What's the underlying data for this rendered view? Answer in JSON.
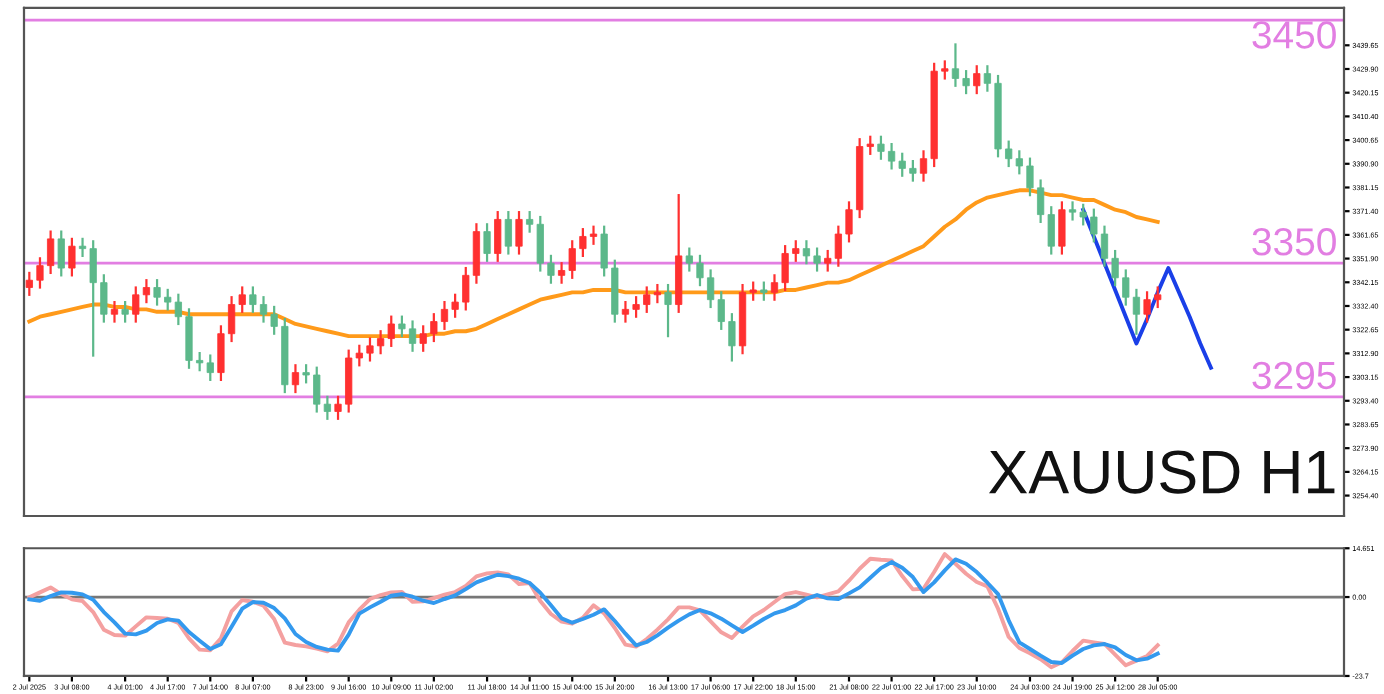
{
  "chart_data": [
    {
      "type": "candlestick",
      "categories": [
        null,
        null,
        null,
        null,
        null,
        null,
        null,
        null,
        null,
        null,
        null,
        null,
        null,
        null,
        null,
        null,
        null,
        null,
        null,
        null,
        null,
        null,
        null,
        null,
        null,
        null,
        null,
        null,
        null,
        null,
        null,
        null,
        null,
        null,
        null,
        null,
        null,
        null,
        null,
        null,
        null,
        null,
        null,
        null,
        null,
        null,
        null,
        null,
        null,
        null,
        null,
        null,
        null,
        null,
        null,
        null,
        null,
        null,
        null,
        null,
        null,
        null,
        null,
        null,
        null,
        null,
        null,
        null,
        null,
        null,
        null,
        null,
        null,
        null,
        null,
        null,
        null,
        null,
        null,
        null,
        null,
        null,
        null,
        null,
        null,
        null,
        null,
        null,
        null,
        null,
        null,
        null,
        null,
        null,
        null,
        null,
        null,
        null,
        null,
        null,
        null,
        null,
        null,
        null,
        null,
        null,
        null,
        null,
        null,
        null,
        null,
        null,
        null,
        null,
        null,
        null,
        null,
        null,
        null,
        null,
        null,
        null,
        null,
        null
      ],
      "ohlc": [
        [
          3340,
          3346,
          3337,
          3343
        ],
        [
          3343,
          3352,
          3340,
          3349
        ],
        [
          3349,
          3363,
          3346,
          3360
        ],
        [
          3360,
          3363,
          3345,
          3348
        ],
        [
          3348,
          3360,
          3345,
          3357
        ],
        [
          3357,
          3360,
          3353,
          3356
        ],
        [
          3356,
          3359,
          3312,
          3342
        ],
        [
          3342,
          3345,
          3326,
          3329
        ],
        [
          3329,
          3334,
          3326,
          3331
        ],
        [
          3331,
          3334,
          3326,
          3329
        ],
        [
          3329,
          3340,
          3326,
          3337
        ],
        [
          3337,
          3343,
          3334,
          3340
        ],
        [
          3340,
          3343,
          3333,
          3336
        ],
        [
          3336,
          3339,
          3331,
          3334
        ],
        [
          3334,
          3337,
          3325,
          3328
        ],
        [
          3328,
          3331,
          3307,
          3310
        ],
        [
          3310,
          3313,
          3306,
          3309
        ],
        [
          3309,
          3312,
          3302,
          3305
        ],
        [
          3305,
          3324,
          3302,
          3321
        ],
        [
          3321,
          3336,
          3318,
          3333
        ],
        [
          3333,
          3340,
          3330,
          3337
        ],
        [
          3337,
          3340,
          3330,
          3333
        ],
        [
          3333,
          3336,
          3326,
          3329
        ],
        [
          3329,
          3332,
          3321,
          3324
        ],
        [
          3324,
          3327,
          3297,
          3300
        ],
        [
          3300,
          3308,
          3297,
          3305
        ],
        [
          3305,
          3308,
          3301,
          3304
        ],
        [
          3304,
          3307,
          3289,
          3292
        ],
        [
          3292,
          3295,
          3286,
          3289
        ],
        [
          3289,
          3295,
          3286,
          3292
        ],
        [
          3292,
          3314,
          3289,
          3311
        ],
        [
          3311,
          3316,
          3308,
          3313
        ],
        [
          3313,
          3319,
          3310,
          3316
        ],
        [
          3316,
          3322,
          3313,
          3319
        ],
        [
          3319,
          3328,
          3316,
          3325
        ],
        [
          3325,
          3328,
          3320,
          3323
        ],
        [
          3323,
          3326,
          3314,
          3317
        ],
        [
          3317,
          3324,
          3314,
          3321
        ],
        [
          3321,
          3329,
          3318,
          3326
        ],
        [
          3326,
          3334,
          3323,
          3331
        ],
        [
          3331,
          3337,
          3328,
          3334
        ],
        [
          3334,
          3348,
          3331,
          3345
        ],
        [
          3345,
          3366,
          3342,
          3363
        ],
        [
          3363,
          3366,
          3351,
          3354
        ],
        [
          3354,
          3371,
          3351,
          3368
        ],
        [
          3368,
          3371,
          3354,
          3357
        ],
        [
          3357,
          3371,
          3354,
          3368
        ],
        [
          3368,
          3371,
          3363,
          3366
        ],
        [
          3366,
          3369,
          3347,
          3350
        ],
        [
          3350,
          3353,
          3342,
          3345
        ],
        [
          3345,
          3350,
          3342,
          3347
        ],
        [
          3347,
          3359,
          3344,
          3356
        ],
        [
          3356,
          3364,
          3353,
          3361
        ],
        [
          3361,
          3365,
          3358,
          3362
        ],
        [
          3362,
          3365,
          3345,
          3348
        ],
        [
          3348,
          3351,
          3326,
          3329
        ],
        [
          3329,
          3334,
          3326,
          3331
        ],
        [
          3331,
          3336,
          3328,
          3333
        ],
        [
          3333,
          3340,
          3330,
          3337
        ],
        [
          3337,
          3341,
          3334,
          3338
        ],
        [
          3338,
          3341,
          3320,
          3333
        ],
        [
          3333,
          3378,
          3330,
          3353
        ],
        [
          3353,
          3356,
          3347,
          3350
        ],
        [
          3350,
          3353,
          3341,
          3344
        ],
        [
          3344,
          3347,
          3332,
          3335
        ],
        [
          3335,
          3338,
          3323,
          3326
        ],
        [
          3326,
          3329,
          3310,
          3316
        ],
        [
          3316,
          3341,
          3313,
          3338
        ],
        [
          3338,
          3342,
          3335,
          3339
        ],
        [
          3339,
          3342,
          3335,
          3338
        ],
        [
          3338,
          3345,
          3335,
          3342
        ],
        [
          3342,
          3357,
          3339,
          3354
        ],
        [
          3354,
          3359,
          3351,
          3356
        ],
        [
          3356,
          3359,
          3350,
          3353
        ],
        [
          3353,
          3356,
          3347,
          3350
        ],
        [
          3350,
          3355,
          3347,
          3352
        ],
        [
          3352,
          3365,
          3349,
          3362
        ],
        [
          3362,
          3375,
          3359,
          3372
        ],
        [
          3372,
          3401,
          3369,
          3398
        ],
        [
          3398,
          3402,
          3395,
          3399
        ],
        [
          3399,
          3402,
          3393,
          3396
        ],
        [
          3396,
          3399,
          3389,
          3392
        ],
        [
          3392,
          3395,
          3386,
          3389
        ],
        [
          3389,
          3392,
          3384,
          3387
        ],
        [
          3387,
          3396,
          3384,
          3393
        ],
        [
          3393,
          3432,
          3390,
          3429
        ],
        [
          3429,
          3433,
          3426,
          3430
        ],
        [
          3430,
          3440,
          3423,
          3426
        ],
        [
          3426,
          3429,
          3420,
          3423
        ],
        [
          3423,
          3431,
          3420,
          3428
        ],
        [
          3428,
          3431,
          3421,
          3424
        ],
        [
          3424,
          3427,
          3394,
          3397
        ],
        [
          3397,
          3400,
          3390,
          3393
        ],
        [
          3393,
          3396,
          3387,
          3390
        ],
        [
          3390,
          3393,
          3378,
          3381
        ],
        [
          3381,
          3384,
          3367,
          3370
        ],
        [
          3370,
          3373,
          3354,
          3357
        ],
        [
          3357,
          3375,
          3354,
          3372
        ],
        [
          3372,
          3375,
          3368,
          3371
        ],
        [
          3371,
          3374,
          3366,
          3369
        ],
        [
          3369,
          3372,
          3359,
          3362
        ],
        [
          3362,
          3365,
          3349,
          3352
        ],
        [
          3352,
          3355,
          3341,
          3344
        ],
        [
          3344,
          3347,
          3333,
          3336
        ],
        [
          3336,
          3339,
          3321,
          3329
        ],
        [
          3329,
          3338,
          3326,
          3335
        ],
        [
          3335,
          3340,
          3332,
          3337
        ],
        null,
        null,
        null,
        null,
        null,
        null,
        null,
        null,
        null,
        null,
        null,
        null,
        null,
        null,
        null,
        null,
        null
      ],
      "colors": [
        "#ff3030",
        "#ff3030",
        "#ff3030",
        "#5cb88a",
        "#ff3030",
        "#5cb88a",
        "#5cb88a",
        "#5cb88a",
        "#ff3030",
        "#5cb88a",
        "#ff3030",
        "#ff3030",
        "#5cb88a",
        "#5cb88a",
        "#5cb88a",
        "#5cb88a",
        "#5cb88a",
        "#5cb88a",
        "#ff3030",
        "#ff3030",
        "#ff3030",
        "#5cb88a",
        "#5cb88a",
        "#5cb88a",
        "#5cb88a",
        "#ff3030",
        "#5cb88a",
        "#5cb88a",
        "#5cb88a",
        "#ff3030",
        "#ff3030",
        "#ff3030",
        "#ff3030",
        "#ff3030",
        "#ff3030",
        "#5cb88a",
        "#5cb88a",
        "#ff3030",
        "#ff3030",
        "#ff3030",
        "#ff3030",
        "#ff3030",
        "#ff3030",
        "#5cb88a",
        "#ff3030",
        "#5cb88a",
        "#ff3030",
        "#5cb88a",
        "#5cb88a",
        "#5cb88a",
        "#ff3030",
        "#ff3030",
        "#ff3030",
        "#ff3030",
        "#5cb88a",
        "#5cb88a",
        "#ff3030",
        "#ff3030",
        "#ff3030",
        "#ff3030",
        "#5cb88a",
        "#ff3030",
        "#5cb88a",
        "#5cb88a",
        "#5cb88a",
        "#5cb88a",
        "#5cb88a",
        "#ff3030",
        "#ff3030",
        "#5cb88a",
        "#ff3030",
        "#ff3030",
        "#ff3030",
        "#5cb88a",
        "#5cb88a",
        "#ff3030",
        "#ff3030",
        "#ff3030",
        "#ff3030",
        "#ff3030",
        "#5cb88a",
        "#5cb88a",
        "#5cb88a",
        "#5cb88a",
        "#ff3030",
        "#ff3030",
        "#ff3030",
        "#5cb88a",
        "#5cb88a",
        "#ff3030",
        "#5cb88a",
        "#5cb88a",
        "#5cb88a",
        "#5cb88a",
        "#5cb88a",
        "#5cb88a",
        "#5cb88a",
        "#ff3030",
        "#5cb88a",
        "#5cb88a",
        "#5cb88a",
        "#5cb88a",
        "#5cb88a",
        "#5cb88a",
        "#5cb88a",
        "#ff3030",
        "#ff3030",
        null,
        null,
        null,
        null,
        null,
        null,
        null,
        null,
        null,
        null,
        null,
        null,
        null,
        null,
        null,
        null,
        null
      ],
      "series": [
        {
          "type": "line",
          "color": "#ff9a1a",
          "values": [
            3326,
            3328,
            3329,
            3330,
            3331,
            3332,
            3333,
            3333,
            3332,
            3332,
            3331,
            3331,
            3330,
            3330,
            3330,
            3329,
            3329,
            3329,
            3329,
            3329,
            3329,
            3329,
            3329,
            3329,
            3327,
            3325,
            3324,
            3323,
            3322,
            3321,
            3320,
            3320,
            3320,
            3320,
            3320,
            3320,
            3320,
            3320,
            3321,
            3321,
            3322,
            3322,
            3323,
            3325,
            3327,
            3329,
            3331,
            3333,
            3335,
            3336,
            3337,
            3338,
            3338,
            3339,
            3339,
            3339,
            3338,
            3338,
            3338,
            3338,
            3338,
            3338,
            3338,
            3338,
            3338,
            3338,
            3338,
            3338,
            3338,
            3338,
            3338,
            3339,
            3339,
            3340,
            3341,
            3342,
            3342,
            3343,
            3345,
            3347,
            3349,
            3351,
            3353,
            3355,
            3357,
            3361,
            3365,
            3368,
            3372,
            3375,
            3377,
            3378,
            3379,
            3380,
            3380,
            3379,
            3378,
            3378,
            3377,
            3376,
            3376,
            3374,
            3372,
            3371,
            3369,
            3368,
            3367,
            null,
            null,
            null,
            null,
            null,
            null,
            null,
            null,
            null,
            null,
            null,
            null,
            null,
            null,
            null,
            null,
            null
          ]
        },
        {
          "type": "line",
          "color": "#1a3fe8",
          "values": [
            null,
            null,
            null,
            null,
            null,
            null,
            null,
            null,
            null,
            null,
            null,
            null,
            null,
            null,
            null,
            null,
            null,
            null,
            null,
            null,
            null,
            null,
            null,
            null,
            null,
            null,
            null,
            null,
            null,
            null,
            null,
            null,
            null,
            null,
            null,
            null,
            null,
            null,
            null,
            null,
            null,
            null,
            null,
            null,
            null,
            null,
            null,
            null,
            null,
            null,
            null,
            null,
            null,
            null,
            null,
            null,
            null,
            null,
            null,
            null,
            null,
            null,
            null,
            null,
            null,
            null,
            null,
            null,
            null,
            null,
            null,
            null,
            null,
            null,
            null,
            null,
            null,
            null,
            null,
            null,
            null,
            null,
            null,
            null,
            null,
            null,
            null,
            null,
            null,
            null,
            null,
            null,
            null,
            null,
            null,
            null,
            null,
            null,
            null,
            3372,
            3361,
            3350,
            3339,
            3328,
            3317,
            3327,
            3338,
            3348,
            3338,
            3328,
            3317,
            3307,
            null,
            null,
            null,
            null,
            null,
            null,
            null,
            null,
            null,
            null,
            null,
            null
          ]
        }
      ],
      "ylim": [
        3246,
        3455
      ],
      "yticks": [
        3439.65,
        {
          "value": 3429.9,
          "label": "3429.90"
        },
        3420.15,
        {
          "value": 3410.4,
          "label": "3410.40"
        },
        3400.65,
        {
          "value": 3390.9,
          "label": "3390.90"
        },
        3381.15,
        {
          "value": 3371.4,
          "label": "3371.40"
        },
        3361.65,
        {
          "value": 3351.9,
          "label": "3351.90"
        },
        3342.15,
        {
          "value": 3332.4,
          "label": "3332.40"
        },
        3322.65,
        {
          "value": 3312.9,
          "label": "3312.90"
        },
        3303.15,
        {
          "value": 3293.4,
          "label": "3293.40"
        },
        3283.65,
        {
          "value": 3273.9,
          "label": "3273.90"
        },
        3264.15,
        {
          "value": 3254.4,
          "label": "3254.40"
        }
      ],
      "tick_labels": "y",
      "ref_lines": [
        {
          "axis": "y",
          "value": 3450,
          "label": "3450",
          "color": "#e27ee2"
        },
        {
          "axis": "y",
          "value": 3350,
          "label": "3350",
          "color": "#e27ee2"
        },
        {
          "axis": "y",
          "value": 3295,
          "label": "3295",
          "color": "#e27ee2"
        }
      ],
      "annotations": [
        "XAUUSD H1"
      ]
    },
    {
      "type": "line",
      "categories": [
        "2 Jul 2025",
        null,
        null,
        null,
        "3 Jul 08:00",
        null,
        null,
        null,
        null,
        "4 Jul 01:00",
        null,
        null,
        null,
        "4 Jul 17:00",
        null,
        null,
        null,
        "7 Jul 14:00",
        null,
        null,
        null,
        "8 Jul 07:00",
        null,
        null,
        null,
        null,
        "8 Jul 23:00",
        null,
        null,
        null,
        "9 Jul 16:00",
        null,
        null,
        null,
        "10 Jul 09:00",
        null,
        null,
        null,
        "11 Jul 02:00",
        null,
        null,
        null,
        null,
        "11 Jul 18:00",
        null,
        null,
        null,
        "14 Jul 11:00",
        null,
        null,
        null,
        "15 Jul 04:00",
        null,
        null,
        null,
        "15 Jul 20:00",
        null,
        null,
        null,
        null,
        "16 Jul 13:00",
        null,
        null,
        null,
        "17 Jul 06:00",
        null,
        null,
        null,
        "17 Jul 22:00",
        null,
        null,
        null,
        "18 Jul 15:00",
        null,
        null,
        null,
        null,
        "21 Jul 08:00",
        null,
        null,
        null,
        "22 Jul 01:00",
        null,
        null,
        null,
        "22 Jul 17:00",
        null,
        null,
        null,
        "23 Jul 10:00",
        null,
        null,
        null,
        null,
        "24 Jul 03:00",
        null,
        null,
        null,
        "24 Jul 19:00",
        null,
        null,
        null,
        "25 Jul 12:00",
        null,
        null,
        null,
        "28 Jul 05:00",
        null,
        null,
        null,
        null,
        null,
        null,
        null,
        null,
        null,
        null,
        null,
        null,
        null,
        null,
        null,
        null,
        null
      ],
      "series": [
        {
          "color": "#f4a0a0",
          "values": [
            -0.1,
            1.4,
            2.9,
            0.9,
            -0.7,
            -1.2,
            -4.5,
            -9.8,
            -11.4,
            -11.6,
            -8.8,
            -6.1,
            -6.3,
            -6.5,
            -7.8,
            -12.4,
            -15.8,
            -16.0,
            -12.4,
            -4.3,
            -0.9,
            -1.4,
            -2.6,
            -6.6,
            -13.7,
            -14.4,
            -14.8,
            -15.5,
            -16.3,
            -14.0,
            -7.6,
            -3.8,
            -0.6,
            0.6,
            1.4,
            1.5,
            -1.4,
            -1.3,
            -0.3,
            0.7,
            1.5,
            3.3,
            6.2,
            7.1,
            7.4,
            6.8,
            3.9,
            4.2,
            -1.2,
            -5.1,
            -7.4,
            -8.0,
            -6.2,
            -2.5,
            -4.9,
            -9.3,
            -14.3,
            -14.9,
            -12.6,
            -9.8,
            -6.7,
            -3.1,
            -3.1,
            -4.0,
            -7.3,
            -10.6,
            -12.3,
            -8.9,
            -5.8,
            -3.9,
            -1.5,
            0.9,
            1.5,
            0.7,
            -0.1,
            0.8,
            1.7,
            4.9,
            8.5,
            11.5,
            11.2,
            11.0,
            6.3,
            2.3,
            2.5,
            7.5,
            12.9,
            10.0,
            7.0,
            4.5,
            3.2,
            -3.5,
            -12.0,
            -15.3,
            -16.9,
            -18.7,
            -21.1,
            -19.6,
            -16.2,
            -13.1,
            -13.6,
            -14.1,
            -17.3,
            -20.5,
            -19.1,
            -17.7,
            -14.5,
            null,
            null,
            null,
            null,
            null,
            null,
            null,
            null,
            null,
            null,
            null,
            null,
            null,
            null,
            null,
            null,
            null
          ]
        },
        {
          "color": "#3399ee",
          "values": [
            -0.7,
            -1.1,
            0.3,
            1.4,
            1.3,
            0.8,
            -0.8,
            -4.5,
            -7.6,
            -11.0,
            -11.2,
            -10.1,
            -7.8,
            -6.7,
            -7.1,
            -10.5,
            -13.1,
            -15.6,
            -14.2,
            -8.9,
            -3.5,
            -1.5,
            -1.7,
            -3.3,
            -6.4,
            -11.1,
            -13.5,
            -15.0,
            -15.8,
            -16.1,
            -11.3,
            -5.0,
            -3.1,
            -1.4,
            0.4,
            0.9,
            0.1,
            -1.1,
            -1.8,
            -0.6,
            0.5,
            2.4,
            4.4,
            5.6,
            6.7,
            6.3,
            5.5,
            4.2,
            1.3,
            -2.5,
            -6.4,
            -7.7,
            -6.6,
            -5.3,
            -3.7,
            -7.2,
            -11.0,
            -14.5,
            -13.5,
            -11.5,
            -9.2,
            -7.1,
            -5.2,
            -3.9,
            -4.9,
            -6.5,
            -8.5,
            -10.5,
            -8.6,
            -6.6,
            -4.9,
            -3.9,
            -2.5,
            -0.5,
            0.6,
            -0.4,
            -0.6,
            1.1,
            2.9,
            5.8,
            8.7,
            10.5,
            8.8,
            6.0,
            1.5,
            4.4,
            8.0,
            11.3,
            10.0,
            7.5,
            4.3,
            0.9,
            -7.0,
            -13.6,
            -15.6,
            -17.6,
            -19.5,
            -19.8,
            -17.6,
            -15.6,
            -14.5,
            -14.1,
            -15.1,
            -17.4,
            -19.0,
            -18.5,
            -17.0,
            null,
            null,
            null,
            null,
            null,
            null,
            null,
            null,
            null,
            null,
            null,
            null,
            null,
            null,
            null,
            null,
            null
          ]
        }
      ],
      "ylim": [
        -23.7,
        14.651
      ],
      "yticks": [
        14.651,
        {
          "value": 0,
          "label": "0.00"
        },
        -23.7
      ],
      "ref_lines": [
        {
          "axis": "y",
          "value": 0,
          "color": "#777777"
        }
      ]
    }
  ]
}
